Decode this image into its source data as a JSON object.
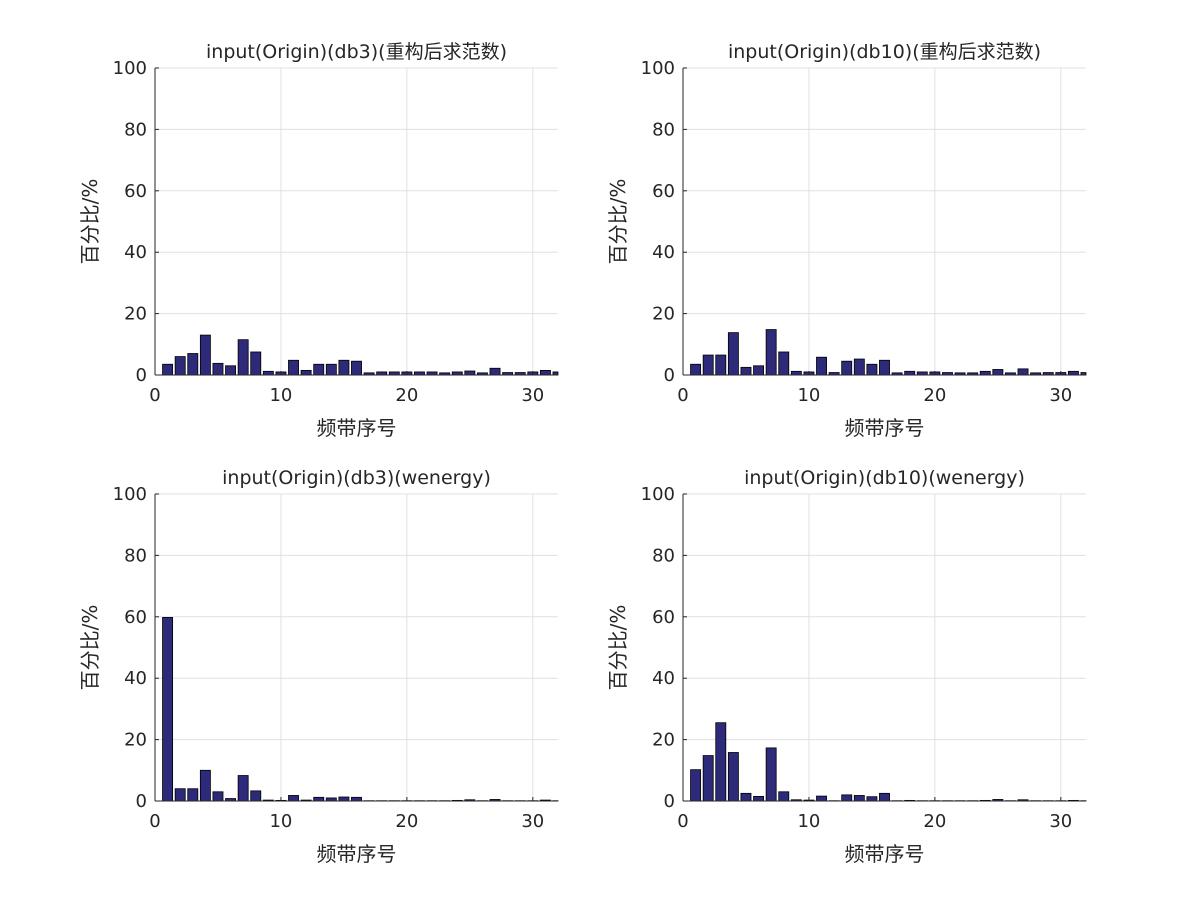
{
  "colors": {
    "bar_fill": "#2E2A7A",
    "bar_edge": "#000000",
    "grid": "#E0E0E0",
    "axis": "#262626",
    "background": "#FFFFFF"
  },
  "chart_data": [
    {
      "type": "bar",
      "title": "input(Origin)(db3)(重构后求范数)",
      "xlabel": "频带序号",
      "ylabel": "百分比/%",
      "xlim": [
        0,
        32
      ],
      "ylim": [
        0,
        100
      ],
      "xticks": [
        0,
        10,
        20,
        30
      ],
      "yticks": [
        0,
        20,
        40,
        60,
        80,
        100
      ],
      "grid": true,
      "categories": [
        1,
        2,
        3,
        4,
        5,
        6,
        7,
        8,
        9,
        10,
        11,
        12,
        13,
        14,
        15,
        16,
        17,
        18,
        19,
        20,
        21,
        22,
        23,
        24,
        25,
        26,
        27,
        28,
        29,
        30,
        31,
        32
      ],
      "values": [
        3.5,
        6.0,
        7.0,
        13.0,
        3.8,
        3.0,
        11.5,
        7.5,
        1.2,
        1.0,
        4.8,
        1.5,
        3.5,
        3.5,
        4.8,
        4.5,
        0.7,
        1.0,
        1.0,
        1.0,
        1.0,
        1.0,
        0.7,
        1.0,
        1.3,
        0.7,
        2.2,
        0.8,
        0.8,
        1.0,
        1.5,
        1.0
      ]
    },
    {
      "type": "bar",
      "title": "input(Origin)(db10)(重构后求范数)",
      "xlabel": "频带序号",
      "ylabel": "百分比/%",
      "xlim": [
        0,
        32
      ],
      "ylim": [
        0,
        100
      ],
      "xticks": [
        0,
        10,
        20,
        30
      ],
      "yticks": [
        0,
        20,
        40,
        60,
        80,
        100
      ],
      "grid": true,
      "categories": [
        1,
        2,
        3,
        4,
        5,
        6,
        7,
        8,
        9,
        10,
        11,
        12,
        13,
        14,
        15,
        16,
        17,
        18,
        19,
        20,
        21,
        22,
        23,
        24,
        25,
        26,
        27,
        28,
        29,
        30,
        31,
        32
      ],
      "values": [
        3.5,
        6.5,
        6.5,
        13.8,
        2.5,
        3.0,
        14.8,
        7.5,
        1.2,
        1.0,
        5.8,
        0.8,
        4.5,
        5.2,
        3.5,
        4.8,
        0.7,
        1.2,
        1.0,
        1.0,
        0.8,
        0.7,
        0.7,
        1.2,
        1.8,
        0.7,
        2.0,
        0.7,
        0.8,
        0.8,
        1.2,
        0.8
      ]
    },
    {
      "type": "bar",
      "title": "input(Origin)(db3)(wenergy)",
      "xlabel": "频带序号",
      "ylabel": "百分比/%",
      "xlim": [
        0,
        32
      ],
      "ylim": [
        0,
        100
      ],
      "xticks": [
        0,
        10,
        20,
        30
      ],
      "yticks": [
        0,
        20,
        40,
        60,
        80,
        100
      ],
      "grid": true,
      "categories": [
        1,
        2,
        3,
        4,
        5,
        6,
        7,
        8,
        9,
        10,
        11,
        12,
        13,
        14,
        15,
        16,
        17,
        18,
        19,
        20,
        21,
        22,
        23,
        24,
        25,
        26,
        27,
        28,
        29,
        30,
        31,
        32
      ],
      "values": [
        59.8,
        4.0,
        4.0,
        10.0,
        3.0,
        0.8,
        8.3,
        3.3,
        0.3,
        0.2,
        1.8,
        0.3,
        1.2,
        1.0,
        1.3,
        1.2,
        0.1,
        0.1,
        0.1,
        0.1,
        0.1,
        0.1,
        0.1,
        0.2,
        0.4,
        0.1,
        0.5,
        0.1,
        0.1,
        0.1,
        0.3,
        0.1
      ]
    },
    {
      "type": "bar",
      "title": "input(Origin)(db10)(wenergy)",
      "xlabel": "频带序号",
      "ylabel": "百分比/%",
      "xlim": [
        0,
        32
      ],
      "ylim": [
        0,
        100
      ],
      "xticks": [
        0,
        10,
        20,
        30
      ],
      "yticks": [
        0,
        20,
        40,
        60,
        80,
        100
      ],
      "grid": true,
      "categories": [
        1,
        2,
        3,
        4,
        5,
        6,
        7,
        8,
        9,
        10,
        11,
        12,
        13,
        14,
        15,
        16,
        17,
        18,
        19,
        20,
        21,
        22,
        23,
        24,
        25,
        26,
        27,
        28,
        29,
        30,
        31,
        32
      ],
      "values": [
        10.2,
        14.8,
        25.5,
        15.8,
        2.5,
        1.5,
        17.3,
        3.0,
        0.4,
        0.3,
        1.6,
        0.1,
        2.0,
        1.8,
        1.4,
        2.5,
        0.1,
        0.2,
        0.1,
        0.1,
        0.1,
        0.1,
        0.1,
        0.2,
        0.5,
        0.1,
        0.4,
        0.1,
        0.1,
        0.1,
        0.2,
        0.1
      ]
    }
  ]
}
